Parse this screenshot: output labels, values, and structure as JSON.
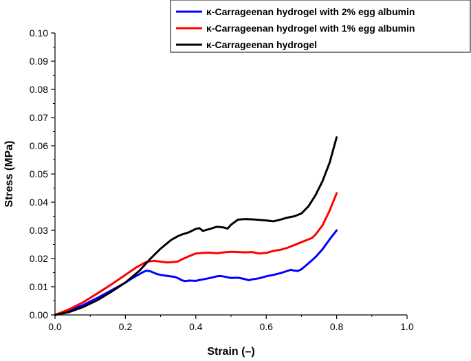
{
  "chart_data": {
    "type": "line",
    "xlabel": "Strain (–)",
    "ylabel": "Stress (MPa)",
    "xlim": [
      0.0,
      1.0
    ],
    "ylim": [
      0.0,
      0.1
    ],
    "x_ticks": [
      {
        "value": 0.0,
        "label": "0.0"
      },
      {
        "value": 0.2,
        "label": "0.2"
      },
      {
        "value": 0.4,
        "label": "0.4"
      },
      {
        "value": 0.6,
        "label": "0.6"
      },
      {
        "value": 0.8,
        "label": "0.8"
      },
      {
        "value": 1.0,
        "label": "1.0"
      }
    ],
    "y_ticks": [
      {
        "value": 0.0,
        "label": "0.00"
      },
      {
        "value": 0.01,
        "label": "0.01"
      },
      {
        "value": 0.02,
        "label": "0.02"
      },
      {
        "value": 0.03,
        "label": "0.03"
      },
      {
        "value": 0.04,
        "label": "0.04"
      },
      {
        "value": 0.05,
        "label": "0.05"
      },
      {
        "value": 0.06,
        "label": "0.06"
      },
      {
        "value": 0.07,
        "label": "0.07"
      },
      {
        "value": 0.08,
        "label": "0.08"
      },
      {
        "value": 0.09,
        "label": "0.09"
      },
      {
        "value": 0.1,
        "label": "0.10"
      }
    ],
    "legend_position": "top-right",
    "series": [
      {
        "name": "κ-Carrageenan hydrogel with 2% egg albumin",
        "color": "#0000ff",
        "x": [
          0,
          0.04,
          0.08,
          0.12,
          0.16,
          0.2,
          0.23,
          0.25,
          0.26,
          0.27,
          0.29,
          0.3,
          0.32,
          0.34,
          0.35,
          0.36,
          0.37,
          0.38,
          0.4,
          0.42,
          0.44,
          0.46,
          0.47,
          0.48,
          0.5,
          0.52,
          0.54,
          0.55,
          0.56,
          0.58,
          0.6,
          0.62,
          0.64,
          0.66,
          0.67,
          0.68,
          0.69,
          0.7,
          0.72,
          0.74,
          0.76,
          0.78,
          0.8
        ],
        "y": [
          0,
          0.0015,
          0.0035,
          0.006,
          0.0087,
          0.0115,
          0.0138,
          0.0152,
          0.0157,
          0.0155,
          0.0145,
          0.0142,
          0.0138,
          0.0135,
          0.013,
          0.0123,
          0.012,
          0.0122,
          0.0121,
          0.0126,
          0.0131,
          0.0137,
          0.0138,
          0.0136,
          0.0131,
          0.0132,
          0.0127,
          0.0123,
          0.0126,
          0.013,
          0.0137,
          0.0142,
          0.0148,
          0.0156,
          0.016,
          0.0157,
          0.0156,
          0.0162,
          0.0183,
          0.0205,
          0.0233,
          0.0268,
          0.03
        ]
      },
      {
        "name": "κ-Carrageenan hydrogel with 1% egg albumin",
        "color": "#ff0000",
        "x": [
          0,
          0.04,
          0.08,
          0.12,
          0.16,
          0.2,
          0.23,
          0.25,
          0.26,
          0.28,
          0.3,
          0.32,
          0.34,
          0.35,
          0.36,
          0.38,
          0.4,
          0.42,
          0.44,
          0.46,
          0.48,
          0.5,
          0.52,
          0.54,
          0.56,
          0.58,
          0.6,
          0.62,
          0.64,
          0.66,
          0.68,
          0.7,
          0.72,
          0.73,
          0.74,
          0.76,
          0.78,
          0.8
        ],
        "y": [
          0,
          0.002,
          0.0045,
          0.0076,
          0.0108,
          0.0142,
          0.0168,
          0.0182,
          0.0188,
          0.0192,
          0.0189,
          0.0186,
          0.0188,
          0.019,
          0.0197,
          0.0208,
          0.0218,
          0.022,
          0.0221,
          0.0219,
          0.0222,
          0.0224,
          0.0223,
          0.0222,
          0.0223,
          0.0218,
          0.022,
          0.0227,
          0.0231,
          0.0238,
          0.0248,
          0.0258,
          0.0268,
          0.0273,
          0.0285,
          0.0318,
          0.037,
          0.0432
        ]
      },
      {
        "name": "κ-Carrageenan hydrogel",
        "color": "#000000",
        "x": [
          0,
          0.04,
          0.08,
          0.12,
          0.16,
          0.2,
          0.24,
          0.27,
          0.3,
          0.33,
          0.35,
          0.36,
          0.38,
          0.4,
          0.41,
          0.42,
          0.44,
          0.46,
          0.48,
          0.49,
          0.5,
          0.52,
          0.54,
          0.56,
          0.58,
          0.6,
          0.62,
          0.64,
          0.66,
          0.68,
          0.7,
          0.72,
          0.74,
          0.76,
          0.78,
          0.8
        ],
        "y": [
          0,
          0.001,
          0.0028,
          0.0052,
          0.0082,
          0.0115,
          0.0157,
          0.0198,
          0.0235,
          0.0266,
          0.028,
          0.0285,
          0.0293,
          0.0305,
          0.0308,
          0.0298,
          0.0305,
          0.0313,
          0.031,
          0.0306,
          0.032,
          0.0338,
          0.034,
          0.0339,
          0.0337,
          0.0335,
          0.0332,
          0.0338,
          0.0345,
          0.035,
          0.036,
          0.0385,
          0.0425,
          0.0475,
          0.054,
          0.063
        ]
      }
    ]
  }
}
